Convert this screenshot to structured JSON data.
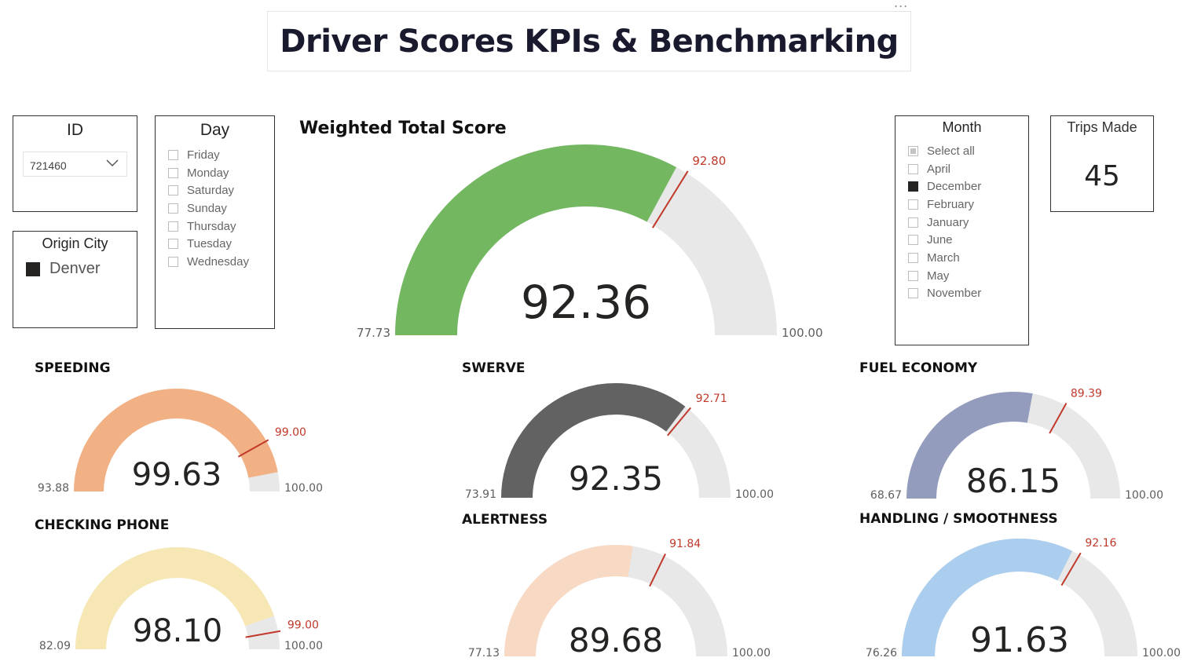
{
  "header": {
    "title": "Driver Scores KPIs & Benchmarking",
    "more_label": "..."
  },
  "id_slicer": {
    "title": "ID",
    "value": "721460"
  },
  "origin_slicer": {
    "title": "Origin City",
    "items": [
      {
        "label": "Denver",
        "checked": true
      }
    ]
  },
  "day_slicer": {
    "title": "Day",
    "items": [
      {
        "label": "Friday",
        "checked": false
      },
      {
        "label": "Monday",
        "checked": false
      },
      {
        "label": "Saturday",
        "checked": false
      },
      {
        "label": "Sunday",
        "checked": false
      },
      {
        "label": "Thursday",
        "checked": false
      },
      {
        "label": "Tuesday",
        "checked": false
      },
      {
        "label": "Wednesday",
        "checked": false
      }
    ]
  },
  "month_slicer": {
    "title": "Month",
    "items": [
      {
        "label": "Select all",
        "state": "partial"
      },
      {
        "label": "April",
        "state": "unchecked"
      },
      {
        "label": "December",
        "state": "checked"
      },
      {
        "label": "February",
        "state": "unchecked"
      },
      {
        "label": "January",
        "state": "unchecked"
      },
      {
        "label": "June",
        "state": "unchecked"
      },
      {
        "label": "March",
        "state": "unchecked"
      },
      {
        "label": "May",
        "state": "unchecked"
      },
      {
        "label": "November",
        "state": "unchecked"
      }
    ]
  },
  "trips_card": {
    "label": "Trips Made",
    "value": "45"
  },
  "colors": {
    "track": "#e8e8e8",
    "target": "#c0392b"
  },
  "gauges": {
    "weighted_total": {
      "title": "Weighted Total Score",
      "value": 92.36,
      "min": 77.73,
      "max": 100.0,
      "target": 92.8,
      "value_label": "92.36",
      "min_label": "77.73",
      "max_label": "100.00",
      "target_label": "92.80",
      "color": "#73b761"
    },
    "speeding": {
      "title": "SPEEDING",
      "value": 99.63,
      "min": 93.88,
      "max": 100.0,
      "target": 99.0,
      "value_label": "99.63",
      "min_label": "93.88",
      "max_label": "100.00",
      "target_label": "99.00",
      "color": "#f1b185"
    },
    "checking_phone": {
      "title": "CHECKING PHONE",
      "value": 98.1,
      "min": 82.09,
      "max": 100.0,
      "target": 99.0,
      "value_label": "98.10",
      "min_label": "82.09",
      "max_label": "100.00",
      "target_label": "99.00",
      "color": "#f6e7b4"
    },
    "swerve": {
      "title": "SWERVE",
      "value": 92.35,
      "min": 73.91,
      "max": 100.0,
      "target": 92.71,
      "value_label": "92.35",
      "min_label": "73.91",
      "max_label": "100.00",
      "target_label": "92.71",
      "color": "#626262"
    },
    "alertness": {
      "title": "ALERTNESS",
      "value": 89.68,
      "min": 77.13,
      "max": 100.0,
      "target": 91.84,
      "value_label": "89.68",
      "min_label": "77.13",
      "max_label": "100.00",
      "target_label": "91.84",
      "color": "#f8d9c4"
    },
    "fuel_economy": {
      "title": "FUEL ECONOMY",
      "value": 86.15,
      "min": 68.67,
      "max": 100.0,
      "target": 89.39,
      "value_label": "86.15",
      "min_label": "68.67",
      "max_label": "100.00",
      "target_label": "89.39",
      "color": "#939cbd"
    },
    "handling_smoothness": {
      "title": "HANDLING / SMOOTHNESS",
      "value": 91.63,
      "min": 76.26,
      "max": 100.0,
      "target": 92.16,
      "value_label": "91.63",
      "min_label": "76.26",
      "max_label": "100.00",
      "target_label": "92.16",
      "color": "#abcdee"
    }
  }
}
